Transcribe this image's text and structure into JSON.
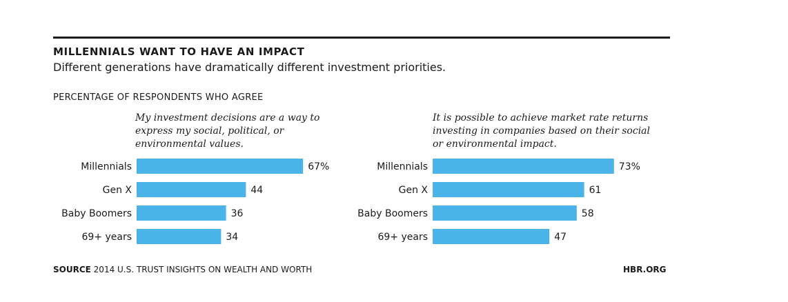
{
  "header": {
    "title": "MILLENNIALS WANT TO HAVE AN IMPACT",
    "subtitle": "Different generations have dramatically different investment priorities.",
    "axis_note": "PERCENTAGE OF RESPONDENTS WHO AGREE"
  },
  "footer": {
    "source_label": "SOURCE",
    "source_text": "2014 U.S. TRUST INSIGHTS ON WEALTH AND WORTH",
    "brand": "HBR.ORG"
  },
  "colors": {
    "bar": "#4ab3e8",
    "rule": "#1a1a1a"
  },
  "chart_data": [
    {
      "type": "bar",
      "orientation": "horizontal",
      "title": "My investment decisions are a way to express my social, political, or environmental values.",
      "categories": [
        "Millennials",
        "Gen X",
        "Baby Boomers",
        "69+ years"
      ],
      "values": [
        67,
        44,
        36,
        34
      ],
      "value_labels": [
        "67%",
        "44",
        "36",
        "34"
      ],
      "xlim": [
        0,
        100
      ],
      "grid": false,
      "legend": "none"
    },
    {
      "type": "bar",
      "orientation": "horizontal",
      "title": "It is possible to achieve market rate returns investing in companies based on their social or environmental impact.",
      "categories": [
        "Millennials",
        "Gen X",
        "Baby Boomers",
        "69+ years"
      ],
      "values": [
        73,
        61,
        58,
        47
      ],
      "value_labels": [
        "73%",
        "61",
        "58",
        "47"
      ],
      "xlim": [
        0,
        100
      ],
      "grid": false,
      "legend": "none"
    }
  ]
}
